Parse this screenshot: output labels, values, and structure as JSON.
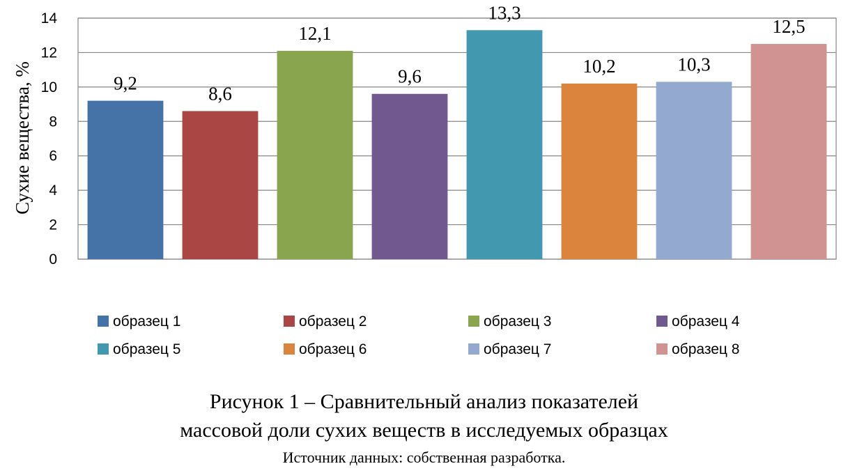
{
  "chart_data": {
    "type": "bar",
    "categories": [
      "образец 1",
      "образец 2",
      "образец 3",
      "образец 4",
      "образец 5",
      "образец 6",
      "образец 7",
      "образец 8"
    ],
    "values": [
      9.2,
      8.6,
      12.1,
      9.6,
      13.3,
      10.2,
      10.3,
      12.5
    ],
    "data_labels": [
      "9,2",
      "8,6",
      "12,1",
      "9,6",
      "13,3",
      "10,2",
      "10,3",
      "12,5"
    ],
    "colors": [
      "#4572A7",
      "#AA4643",
      "#89A54E",
      "#71588F",
      "#4198AF",
      "#DB843D",
      "#93A9CF",
      "#D19392"
    ],
    "ylabel": "Сухие вещества, %",
    "xlabel": "",
    "ylim": [
      0,
      14
    ],
    "yticks": [
      0,
      2,
      4,
      6,
      8,
      10,
      12,
      14
    ],
    "grid": true,
    "legend_position": "bottom"
  },
  "caption": {
    "line1": "Рисунок 1 – Сравнительный анализ показателей",
    "line2": "массовой доли сухих веществ в исследуемых образцах",
    "source": "Источник данных: собственная разработка."
  }
}
